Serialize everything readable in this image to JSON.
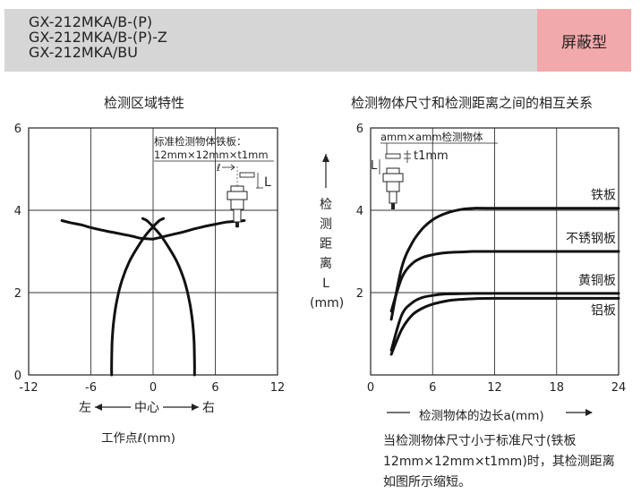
{
  "header": {
    "models": [
      "GX-212MKA/B-(P)",
      "GX-212MKA/B-(P)-Z",
      "GX-212MKA/BU"
    ],
    "badge": "屏蔽型"
  },
  "left_chart": {
    "title": "检测区域特性",
    "annotation_line1": "标准检测物体铁板：",
    "annotation_line2": "12mm×12mm×t1mm",
    "ell_symbol": "ℓ",
    "L_symbol": "L",
    "axis_arrow_left": "左",
    "axis_arrow_center": "中心",
    "axis_arrow_right": "右",
    "xlabel": "工作点ℓ(mm)"
  },
  "right_chart": {
    "title": "检测物体尺寸和检测距离之间的相互关系",
    "annotation": "amm×amm检测物体",
    "t_label": "t1mm",
    "L_symbol": "L",
    "ylabel_chars": [
      "检",
      "测",
      "距",
      "离",
      "L",
      "(mm)"
    ],
    "xlabel": "检测物体的边长a(mm)"
  },
  "note": {
    "text": "当检测物体尺寸小于标准尺寸(铁板12mm×12mm×t1mm)时，其检测距离如图所示缩短。"
  },
  "colors": {
    "header_bg": "#d6d6d6",
    "badge_bg": "#f1a9ab",
    "curve": "#111111"
  },
  "chart_data": [
    {
      "type": "line",
      "title": "检测区域特性",
      "xlabel": "工作点ℓ(mm)",
      "ylabel": "",
      "xlim": [
        -12,
        12
      ],
      "ylim": [
        0,
        6
      ],
      "xticks": [
        -12,
        -6,
        0,
        6,
        12
      ],
      "yticks": [
        0,
        2,
        4,
        6
      ],
      "grid": true,
      "series": [
        {
          "x": [
            -8.8,
            -8.0,
            -7.0,
            -6.0,
            -5.0,
            -4.0,
            -3.0,
            -2.0,
            -1.2,
            0.0
          ],
          "y": [
            3.75,
            3.7,
            3.65,
            3.58,
            3.52,
            3.47,
            3.42,
            3.37,
            3.32,
            3.3
          ]
        },
        {
          "x": [
            0.0,
            1.0,
            2.0,
            3.0,
            4.0,
            5.0,
            6.0,
            7.0,
            8.0,
            8.8
          ],
          "y": [
            3.3,
            3.36,
            3.42,
            3.48,
            3.55,
            3.61,
            3.66,
            3.71,
            3.73,
            3.75
          ]
        },
        {
          "x": [
            -4.0,
            -4.0,
            -3.95,
            -3.8,
            -3.5,
            -3.0,
            -2.3,
            -1.5,
            -0.7,
            0.0,
            0.6,
            1.0
          ],
          "y": [
            0.0,
            0.3,
            0.8,
            1.3,
            1.8,
            2.3,
            2.75,
            3.1,
            3.4,
            3.6,
            3.75,
            3.8
          ]
        },
        {
          "x": [
            4.0,
            4.0,
            3.95,
            3.8,
            3.5,
            3.0,
            2.3,
            1.5,
            0.7,
            0.0,
            -0.6,
            -1.0
          ],
          "y": [
            0.0,
            0.3,
            0.8,
            1.3,
            1.8,
            2.3,
            2.75,
            3.1,
            3.4,
            3.6,
            3.75,
            3.8
          ]
        }
      ]
    },
    {
      "type": "line",
      "title": "检测物体尺寸和检测距离之间的相互关系",
      "xlabel": "检测物体的边长a(mm)",
      "ylabel": "检测距离L(mm)",
      "xlim": [
        0,
        24
      ],
      "ylim": [
        0,
        6
      ],
      "xticks": [
        0,
        6,
        12,
        18,
        24
      ],
      "yticks": [
        2,
        4,
        6
      ],
      "grid": true,
      "series": [
        {
          "name": "铁板",
          "x": [
            2,
            3,
            4,
            5,
            6,
            7,
            8,
            9,
            10,
            12,
            24
          ],
          "y": [
            1.35,
            2.6,
            3.2,
            3.55,
            3.77,
            3.9,
            3.98,
            4.03,
            4.05,
            4.05,
            4.05
          ]
        },
        {
          "name": "不锈钢板",
          "x": [
            2,
            3,
            4,
            5,
            6,
            7,
            8,
            9,
            10,
            12,
            24
          ],
          "y": [
            1.55,
            2.35,
            2.7,
            2.85,
            2.92,
            2.96,
            2.98,
            2.99,
            3.0,
            3.0,
            3.0
          ]
        },
        {
          "name": "黄铜板",
          "x": [
            2,
            3,
            4,
            5,
            6,
            7,
            8,
            10,
            12,
            24
          ],
          "y": [
            0.6,
            1.45,
            1.75,
            1.88,
            1.93,
            1.96,
            1.97,
            1.98,
            1.98,
            1.98
          ]
        },
        {
          "name": "铝板",
          "x": [
            2,
            3,
            4,
            5,
            6,
            7,
            8,
            10,
            12,
            24
          ],
          "y": [
            0.5,
            1.1,
            1.45,
            1.62,
            1.72,
            1.78,
            1.82,
            1.85,
            1.86,
            1.86
          ]
        }
      ]
    }
  ]
}
